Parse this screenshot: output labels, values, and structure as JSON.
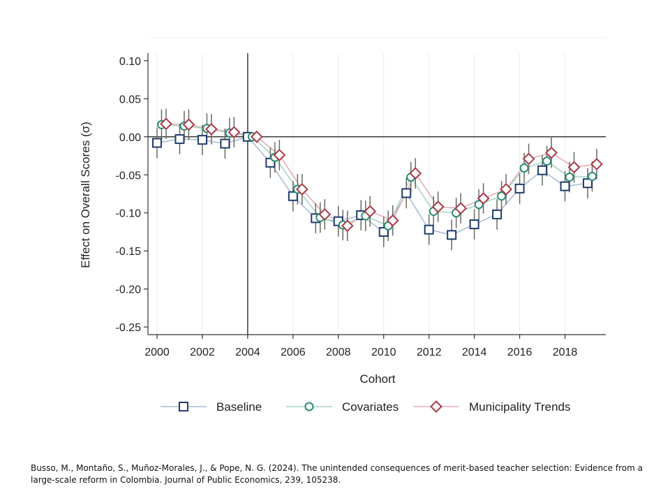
{
  "chart_data": {
    "type": "line",
    "title": "",
    "xlabel": "Cohort",
    "ylabel": "Effect on Overall Scores (σ)",
    "xlim": [
      1999.6,
      2019.8
    ],
    "ylim": [
      -0.26,
      0.11
    ],
    "xticks": [
      2000,
      2002,
      2004,
      2006,
      2008,
      2010,
      2012,
      2014,
      2016,
      2018
    ],
    "xtick_labels": [
      "2000",
      "2002",
      "2004",
      "2006",
      "2008",
      "2010",
      "2012",
      "2014",
      "2016",
      "2018"
    ],
    "yticks": [
      0.1,
      0.05,
      0.0,
      -0.05,
      -0.1,
      -0.15,
      -0.2,
      -0.25
    ],
    "ytick_labels": [
      "0.10",
      "0.05",
      "0.00",
      "-0.05",
      "-0.10",
      "-0.15",
      "-0.20",
      "-0.25"
    ],
    "reference_lines": {
      "vertical_x": 2004,
      "horizontal_y": 0
    },
    "grid": "vertical",
    "x": [
      2000,
      2001,
      2002,
      2003,
      2004,
      2005,
      2006,
      2007,
      2008,
      2009,
      2010,
      2011,
      2012,
      2013,
      2014,
      2015,
      2016,
      2017,
      2018,
      2019
    ],
    "series": [
      {
        "name": "Baseline",
        "marker": "square",
        "color": "#1f3b6e",
        "line_color": "#a9bcd6",
        "offset": 0,
        "values": [
          -0.008,
          -0.003,
          -0.004,
          -0.009,
          0.0,
          -0.034,
          -0.078,
          -0.107,
          -0.111,
          -0.103,
          -0.125,
          -0.074,
          -0.122,
          -0.129,
          -0.115,
          -0.102,
          -0.068,
          -0.044,
          -0.065,
          -0.061
        ],
        "ci": [
          0.02,
          0.02,
          0.02,
          0.02,
          0.0,
          0.02,
          0.02,
          0.02,
          0.02,
          0.02,
          0.02,
          0.02,
          0.02,
          0.02,
          0.02,
          0.02,
          0.02,
          0.02,
          0.02,
          0.02
        ]
      },
      {
        "name": "Covariates",
        "marker": "circle",
        "color": "#2a8c72",
        "line_color": "#a8d5c6",
        "offset": 0.2,
        "values": [
          0.016,
          0.014,
          0.011,
          0.005,
          0.0,
          -0.027,
          -0.069,
          -0.106,
          -0.116,
          -0.104,
          -0.117,
          -0.053,
          -0.098,
          -0.1,
          -0.089,
          -0.078,
          -0.041,
          -0.032,
          -0.053,
          -0.052
        ],
        "ci": [
          0.02,
          0.02,
          0.02,
          0.02,
          0.0,
          0.02,
          0.02,
          0.02,
          0.02,
          0.02,
          0.02,
          0.02,
          0.02,
          0.02,
          0.02,
          0.02,
          0.02,
          0.02,
          0.02,
          0.02
        ]
      },
      {
        "name": "Municipality Trends",
        "marker": "diamond",
        "color": "#a83a48",
        "line_color": "#e2aeb5",
        "offset": 0.4,
        "values": [
          0.017,
          0.016,
          0.01,
          0.006,
          0.0,
          -0.024,
          -0.069,
          -0.102,
          -0.117,
          -0.098,
          -0.11,
          -0.048,
          -0.092,
          -0.094,
          -0.081,
          -0.069,
          -0.029,
          -0.021,
          -0.04,
          -0.036
        ],
        "ci": [
          0.02,
          0.02,
          0.02,
          0.02,
          0.0,
          0.02,
          0.02,
          0.02,
          0.02,
          0.02,
          0.02,
          0.02,
          0.02,
          0.02,
          0.02,
          0.02,
          0.02,
          0.02,
          0.02,
          0.02
        ]
      }
    ],
    "errorbar_color": "#666a5f",
    "legend_position": "bottom"
  },
  "citation": {
    "line1": "Busso, M., Montaño, S., Muñoz-Morales, J., & Pope, N. G. (2024). The unintended consequences of merit-based teacher selection: Evidence from a",
    "line2": "large-scale reform in Colombia. Journal of Public Economics, 239, 105238."
  }
}
